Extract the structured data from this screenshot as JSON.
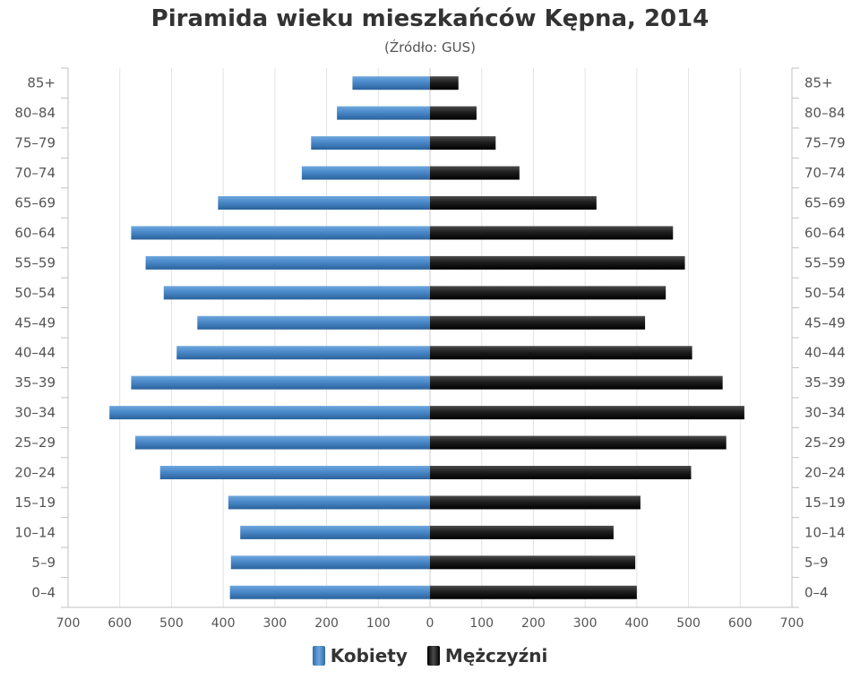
{
  "chart_data": {
    "type": "bar",
    "orientation": "horizontal-population-pyramid",
    "title": "Piramida wieku mieszkańców Kępna, 2014",
    "subtitle": "(Źródło: GUS)",
    "categories": [
      "85+",
      "80-84",
      "75-79",
      "70-74",
      "65-69",
      "60-64",
      "55-59",
      "50-54",
      "45-49",
      "40-44",
      "35-39",
      "30-34",
      "25-29",
      "20-24",
      "15-19",
      "10-14",
      "5-9",
      "0-4"
    ],
    "series": [
      {
        "name": "Kobiety",
        "side": "left",
        "color": "#3d7dbd",
        "values": [
          150,
          180,
          230,
          248,
          410,
          578,
          550,
          515,
          450,
          490,
          578,
          620,
          570,
          522,
          390,
          367,
          385,
          387
        ]
      },
      {
        "name": "Mężczyźni",
        "side": "right",
        "color": "#111111",
        "values": [
          55,
          90,
          127,
          173,
          322,
          470,
          493,
          456,
          416,
          507,
          566,
          608,
          573,
          505,
          407,
          355,
          397,
          400
        ]
      }
    ],
    "x_ticks": [
      700,
      600,
      500,
      400,
      300,
      200,
      100,
      0,
      100,
      200,
      300,
      400,
      500,
      600,
      700
    ],
    "xlim": [
      -700,
      700
    ],
    "grid": true,
    "legend_position": "bottom-center"
  },
  "legend": {
    "women_label": "Kobiety",
    "men_label": "Mężczyźni"
  }
}
